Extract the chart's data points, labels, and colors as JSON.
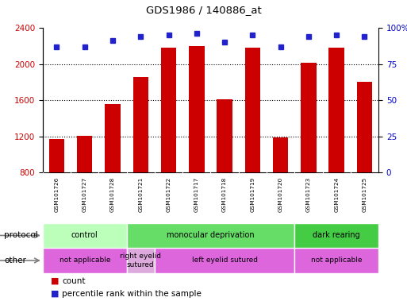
{
  "title": "GDS1986 / 140886_at",
  "samples": [
    "GSM101726",
    "GSM101727",
    "GSM101728",
    "GSM101721",
    "GSM101722",
    "GSM101717",
    "GSM101718",
    "GSM101719",
    "GSM101720",
    "GSM101723",
    "GSM101724",
    "GSM101725"
  ],
  "counts": [
    1170,
    1210,
    1560,
    1860,
    2180,
    2200,
    1610,
    2180,
    1185,
    2010,
    2180,
    1800
  ],
  "percentiles": [
    87,
    87,
    91,
    94,
    95,
    96,
    90,
    95,
    87,
    94,
    95,
    94
  ],
  "ylim_left": [
    800,
    2400
  ],
  "ylim_right": [
    0,
    100
  ],
  "yticks_left": [
    800,
    1200,
    1600,
    2000,
    2400
  ],
  "yticks_right": [
    0,
    25,
    50,
    75,
    100
  ],
  "bar_color": "#cc0000",
  "dot_color": "#2222cc",
  "protocol_groups": [
    {
      "label": "control",
      "start": 0,
      "end": 3,
      "color": "#bbffbb"
    },
    {
      "label": "monocular deprivation",
      "start": 3,
      "end": 9,
      "color": "#66dd66"
    },
    {
      "label": "dark rearing",
      "start": 9,
      "end": 12,
      "color": "#44cc44"
    }
  ],
  "other_groups": [
    {
      "label": "not applicable",
      "start": 0,
      "end": 3,
      "color": "#dd66dd"
    },
    {
      "label": "right eyelid\nsutured",
      "start": 3,
      "end": 4,
      "color": "#ddaadd"
    },
    {
      "label": "left eyelid sutured",
      "start": 4,
      "end": 9,
      "color": "#dd66dd"
    },
    {
      "label": "not applicable",
      "start": 9,
      "end": 12,
      "color": "#dd66dd"
    }
  ],
  "protocol_label": "protocol",
  "other_label": "other",
  "legend_count_label": "count",
  "legend_pct_label": "percentile rank within the sample",
  "bg_color": "#ffffff",
  "grid_color": "#000000",
  "label_color_left": "#cc0000",
  "label_color_right": "#0000cc",
  "sample_bg_color": "#cccccc"
}
